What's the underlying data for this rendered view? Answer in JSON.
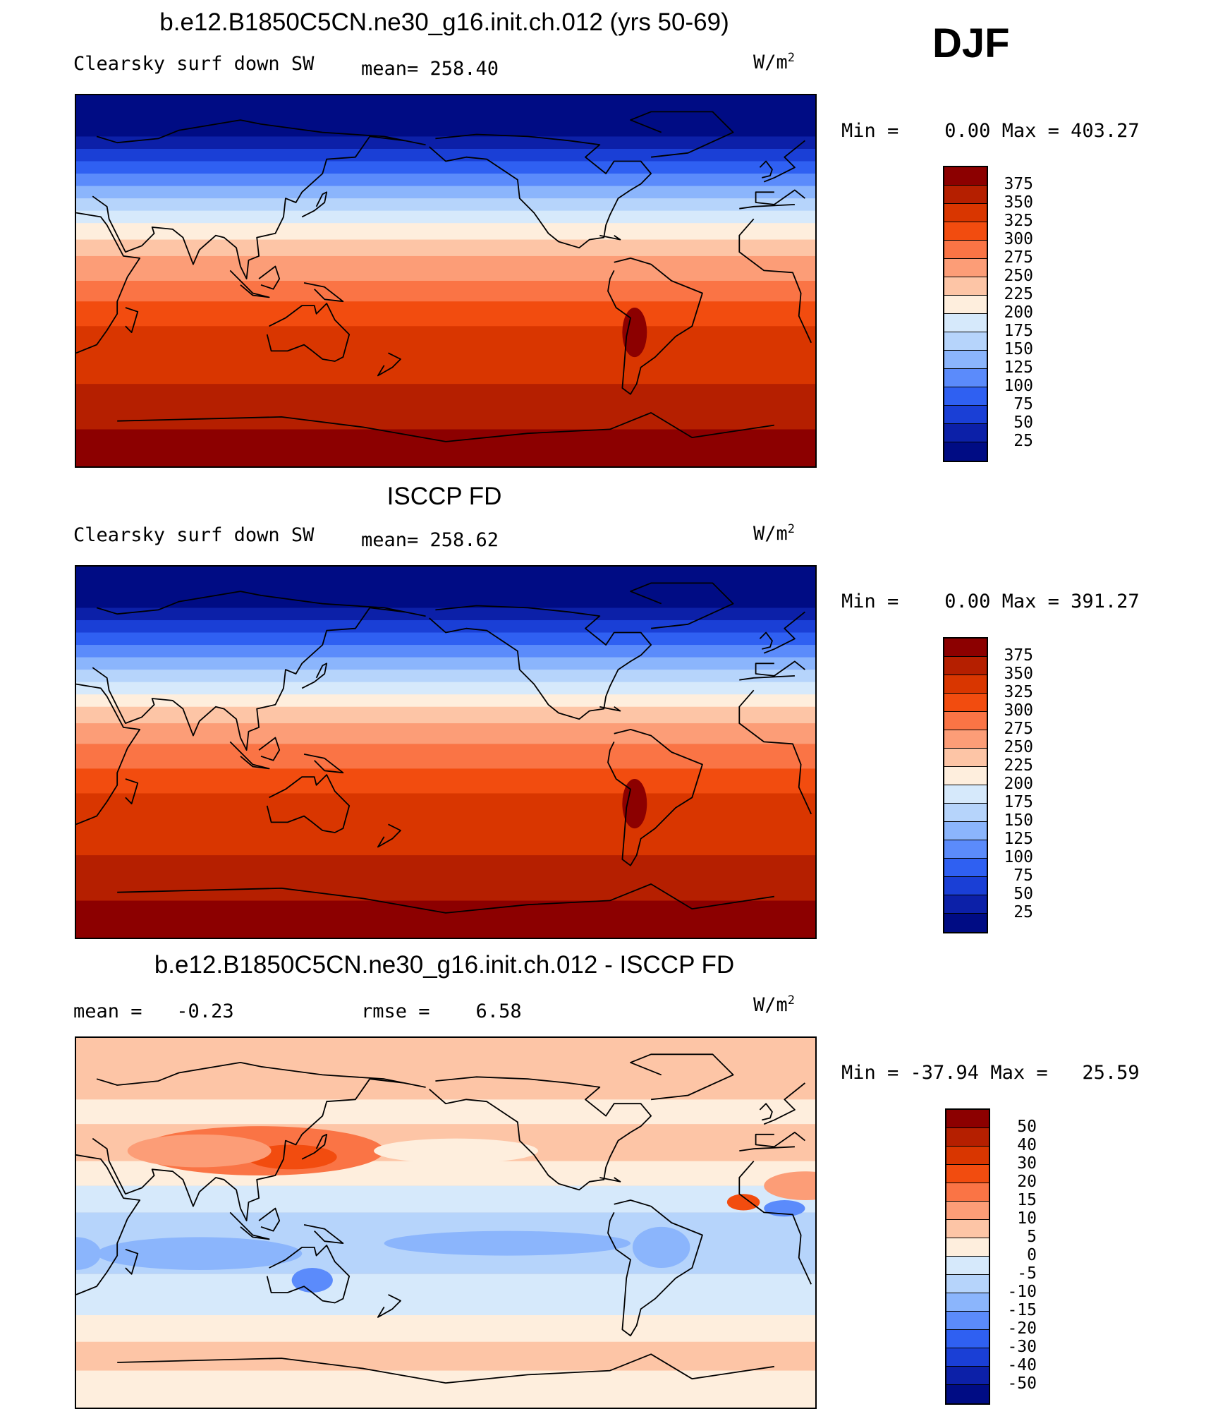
{
  "season": "DJF",
  "units_base": "W/m",
  "units_exp": "2",
  "panels": [
    {
      "title": "b.e12.B1850C5CN.ne30_g16.init.ch.012 (yrs 50-69)",
      "variable": "Clearsky surf down SW",
      "stat_text": "mean= 258.40",
      "minmax_text": "Min =    0.00 Max = 403.27",
      "legend_labels": [
        "375",
        "350",
        "325",
        "300",
        "275",
        "250",
        "225",
        "200",
        "175",
        "150",
        "125",
        "100",
        "75",
        "50",
        "25"
      ],
      "legend_colors": [
        "#8c0000",
        "#b51f00",
        "#d93600",
        "#f24c0f",
        "#fa7445",
        "#fc9d77",
        "#fdc5a6",
        "#feeedd",
        "#d6e9fb",
        "#b6d4fb",
        "#8bb5fc",
        "#5b8bfb",
        "#2f60f2",
        "#1a3fd6",
        "#0c20a8",
        "#000c84"
      ],
      "field": "model"
    },
    {
      "title": "ISCCP FD",
      "variable": "Clearsky surf down SW",
      "stat_text": "mean= 258.62",
      "minmax_text": "Min =    0.00 Max = 391.27",
      "legend_labels": [
        "375",
        "350",
        "325",
        "300",
        "275",
        "250",
        "225",
        "200",
        "175",
        "150",
        "125",
        "100",
        "75",
        "50",
        "25"
      ],
      "legend_colors": [
        "#8c0000",
        "#b51f00",
        "#d93600",
        "#f24c0f",
        "#fa7445",
        "#fc9d77",
        "#fdc5a6",
        "#feeedd",
        "#d6e9fb",
        "#b6d4fb",
        "#8bb5fc",
        "#5b8bfb",
        "#2f60f2",
        "#1a3fd6",
        "#0c20a8",
        "#000c84"
      ],
      "field": "obs"
    },
    {
      "title": "b.e12.B1850C5CN.ne30_g16.init.ch.012 - ISCCP FD",
      "variable": "mean =   -0.23",
      "stat_text": "rmse =    6.58",
      "minmax_text": "Min = -37.94 Max =   25.59",
      "legend_labels": [
        "50",
        "40",
        "30",
        "20",
        "15",
        "10",
        "5",
        "0",
        "-5",
        "-10",
        "-15",
        "-20",
        "-30",
        "-40",
        "-50"
      ],
      "legend_colors": [
        "#8c0000",
        "#b51f00",
        "#d93600",
        "#f24c0f",
        "#fa7445",
        "#fc9d77",
        "#fdc5a6",
        "#feeedd",
        "#d6e9fb",
        "#b6d4fb",
        "#8bb5fc",
        "#5b8bfb",
        "#2f60f2",
        "#1a3fd6",
        "#0c20a8",
        "#000c84"
      ],
      "field": "diff"
    }
  ]
}
